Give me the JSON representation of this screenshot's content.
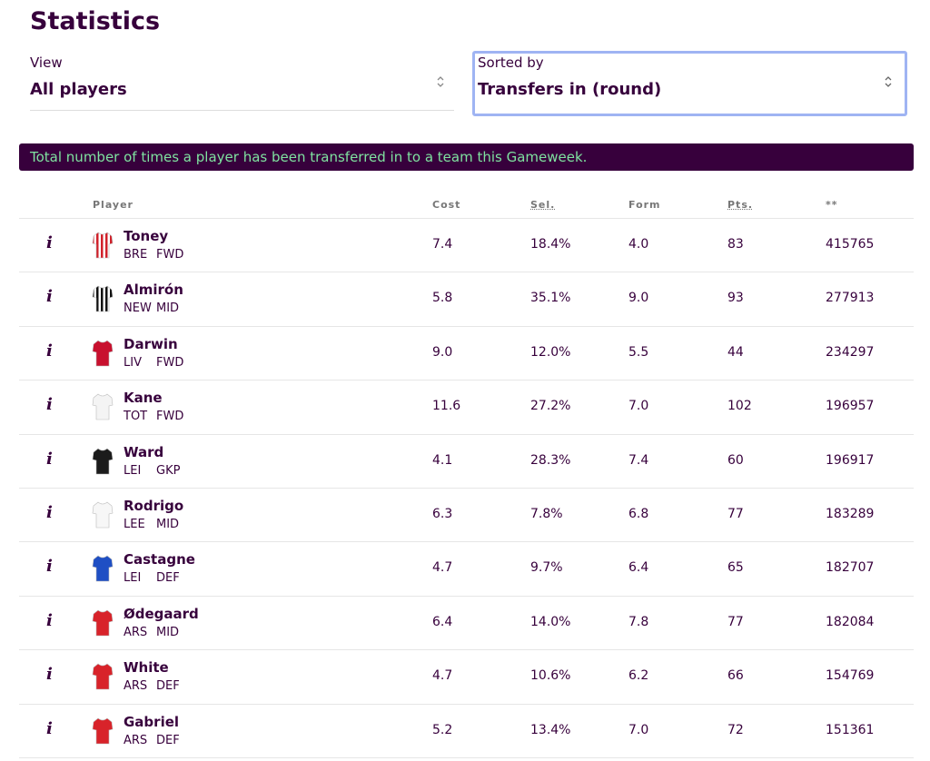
{
  "header": {
    "title": "Statistics"
  },
  "filters": {
    "view": {
      "label": "View",
      "value": "All players"
    },
    "sort": {
      "label": "Sorted by",
      "value": "Transfers in (round)"
    }
  },
  "banner": "Total number of times a player has been transferred in to a team this Gameweek.",
  "table": {
    "columns": [
      "Player",
      "Cost",
      "Sel.",
      "Form",
      "Pts.",
      "**"
    ],
    "info_icon": "i",
    "rows": [
      {
        "name": "Toney",
        "team": "BRE",
        "position": "FWD",
        "cost": "7.4",
        "selected": "18.4%",
        "form": "4.0",
        "points": "83",
        "transfers": "415765"
      },
      {
        "name": "Almirón",
        "team": "NEW",
        "position": "MID",
        "cost": "5.8",
        "selected": "35.1%",
        "form": "9.0",
        "points": "93",
        "transfers": "277913"
      },
      {
        "name": "Darwin",
        "team": "LIV",
        "position": "FWD",
        "cost": "9.0",
        "selected": "12.0%",
        "form": "5.5",
        "points": "44",
        "transfers": "234297"
      },
      {
        "name": "Kane",
        "team": "TOT",
        "position": "FWD",
        "cost": "11.6",
        "selected": "27.2%",
        "form": "7.0",
        "points": "102",
        "transfers": "196957"
      },
      {
        "name": "Ward",
        "team": "LEI",
        "position": "GKP",
        "cost": "4.1",
        "selected": "28.3%",
        "form": "7.4",
        "points": "60",
        "transfers": "196917"
      },
      {
        "name": "Rodrigo",
        "team": "LEE",
        "position": "MID",
        "cost": "6.3",
        "selected": "7.8%",
        "form": "6.8",
        "points": "77",
        "transfers": "183289"
      },
      {
        "name": "Castagne",
        "team": "LEI",
        "position": "DEF",
        "cost": "4.7",
        "selected": "9.7%",
        "form": "6.4",
        "points": "65",
        "transfers": "182707"
      },
      {
        "name": "Ødegaard",
        "team": "ARS",
        "position": "MID",
        "cost": "6.4",
        "selected": "14.0%",
        "form": "7.8",
        "points": "77",
        "transfers": "182084"
      },
      {
        "name": "White",
        "team": "ARS",
        "position": "DEF",
        "cost": "4.7",
        "selected": "10.6%",
        "form": "6.2",
        "points": "66",
        "transfers": "154769"
      },
      {
        "name": "Gabriel",
        "team": "ARS",
        "position": "DEF",
        "cost": "5.2",
        "selected": "13.4%",
        "form": "7.0",
        "points": "72",
        "transfers": "151361"
      }
    ]
  }
}
